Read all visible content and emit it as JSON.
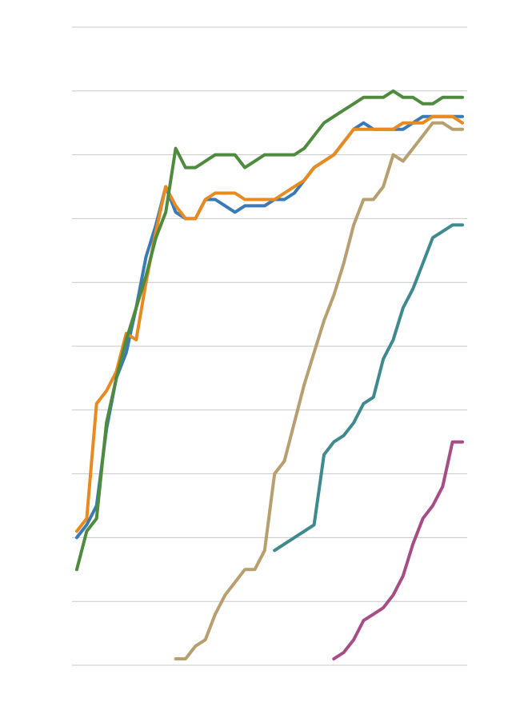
{
  "chart_data": {
    "type": "line",
    "title": "",
    "xlabel": "",
    "ylabel": "",
    "xlim": [
      0,
      39
    ],
    "ylim": [
      0,
      100
    ],
    "y_gridlines": [
      0,
      10,
      20,
      30,
      40,
      50,
      60,
      70,
      80,
      90,
      100
    ],
    "grid": true,
    "legend": "none",
    "series": [
      {
        "color": "#3a7ab8",
        "x": [
          0,
          1,
          2,
          3,
          4,
          5,
          6,
          7,
          8,
          9,
          10,
          11,
          12,
          13,
          14,
          15,
          16,
          17,
          18,
          19,
          20,
          21,
          22,
          23,
          24,
          25,
          26,
          27,
          28,
          29,
          30,
          31,
          32,
          33,
          34,
          35,
          36,
          37,
          38,
          39
        ],
        "values": [
          20,
          22,
          25,
          37,
          45,
          49,
          56,
          64,
          69,
          75,
          71,
          70,
          70,
          73,
          73,
          72,
          71,
          72,
          72,
          72,
          73,
          73,
          74,
          76,
          78,
          79,
          80,
          82,
          84,
          85,
          84,
          84,
          84,
          84,
          85,
          86,
          86,
          86,
          86,
          86
        ]
      },
      {
        "color": "#e88a1e",
        "x": [
          0,
          1,
          2,
          3,
          4,
          5,
          6,
          7,
          8,
          9,
          10,
          11,
          12,
          13,
          14,
          15,
          16,
          17,
          18,
          19,
          20,
          21,
          22,
          23,
          24,
          25,
          26,
          27,
          28,
          29,
          30,
          31,
          32,
          33,
          34,
          35,
          36,
          37,
          38,
          39
        ],
        "values": [
          21,
          23,
          41,
          43,
          46,
          52,
          51,
          60,
          68,
          75,
          72,
          70,
          70,
          73,
          74,
          74,
          74,
          73,
          73,
          73,
          73,
          74,
          75,
          76,
          78,
          79,
          80,
          82,
          84,
          84,
          84,
          84,
          84,
          85,
          85,
          85,
          86,
          86,
          86,
          85
        ]
      },
      {
        "color": "#4e8b3e",
        "x": [
          0,
          1,
          2,
          3,
          4,
          5,
          6,
          7,
          8,
          9,
          10,
          11,
          12,
          13,
          14,
          15,
          16,
          17,
          18,
          19,
          20,
          21,
          22,
          23,
          24,
          25,
          26,
          27,
          28,
          29,
          30,
          31,
          32,
          33,
          34,
          35,
          36,
          37,
          38,
          39
        ],
        "values": [
          15,
          21,
          23,
          38,
          45,
          51,
          56,
          61,
          67,
          71,
          81,
          78,
          78,
          79,
          80,
          80,
          80,
          78,
          79,
          80,
          80,
          80,
          80,
          81,
          83,
          85,
          86,
          87,
          88,
          89,
          89,
          89,
          90,
          89,
          89,
          88,
          88,
          89,
          89,
          89
        ]
      },
      {
        "color": "#b89f6f",
        "x": [
          10,
          11,
          12,
          13,
          14,
          15,
          16,
          17,
          18,
          19,
          20,
          21,
          22,
          23,
          24,
          25,
          26,
          27,
          28,
          29,
          30,
          31,
          32,
          33,
          34,
          35,
          36,
          37,
          38,
          39
        ],
        "values": [
          1,
          1,
          3,
          4,
          8,
          11,
          13,
          15,
          15,
          18,
          30,
          32,
          38,
          44,
          49,
          54,
          58,
          63,
          69,
          73,
          73,
          75,
          80,
          79,
          81,
          83,
          85,
          85,
          84,
          84
        ]
      },
      {
        "color": "#3f8a8e",
        "x": [
          20,
          21,
          22,
          23,
          24,
          25,
          26,
          27,
          28,
          29,
          30,
          31,
          32,
          33,
          34,
          35,
          36,
          37,
          38,
          39
        ],
        "values": [
          18,
          19,
          20,
          21,
          22,
          33,
          35,
          36,
          38,
          41,
          42,
          48,
          51,
          56,
          59,
          63,
          67,
          68,
          69,
          69
        ]
      },
      {
        "color": "#a64d86",
        "x": [
          26,
          27,
          28,
          29,
          30,
          31,
          32,
          33,
          34,
          35,
          36,
          37,
          38,
          39
        ],
        "values": [
          1,
          2,
          4,
          7,
          8,
          9,
          11,
          14,
          19,
          23,
          25,
          28,
          35,
          35
        ]
      }
    ]
  }
}
